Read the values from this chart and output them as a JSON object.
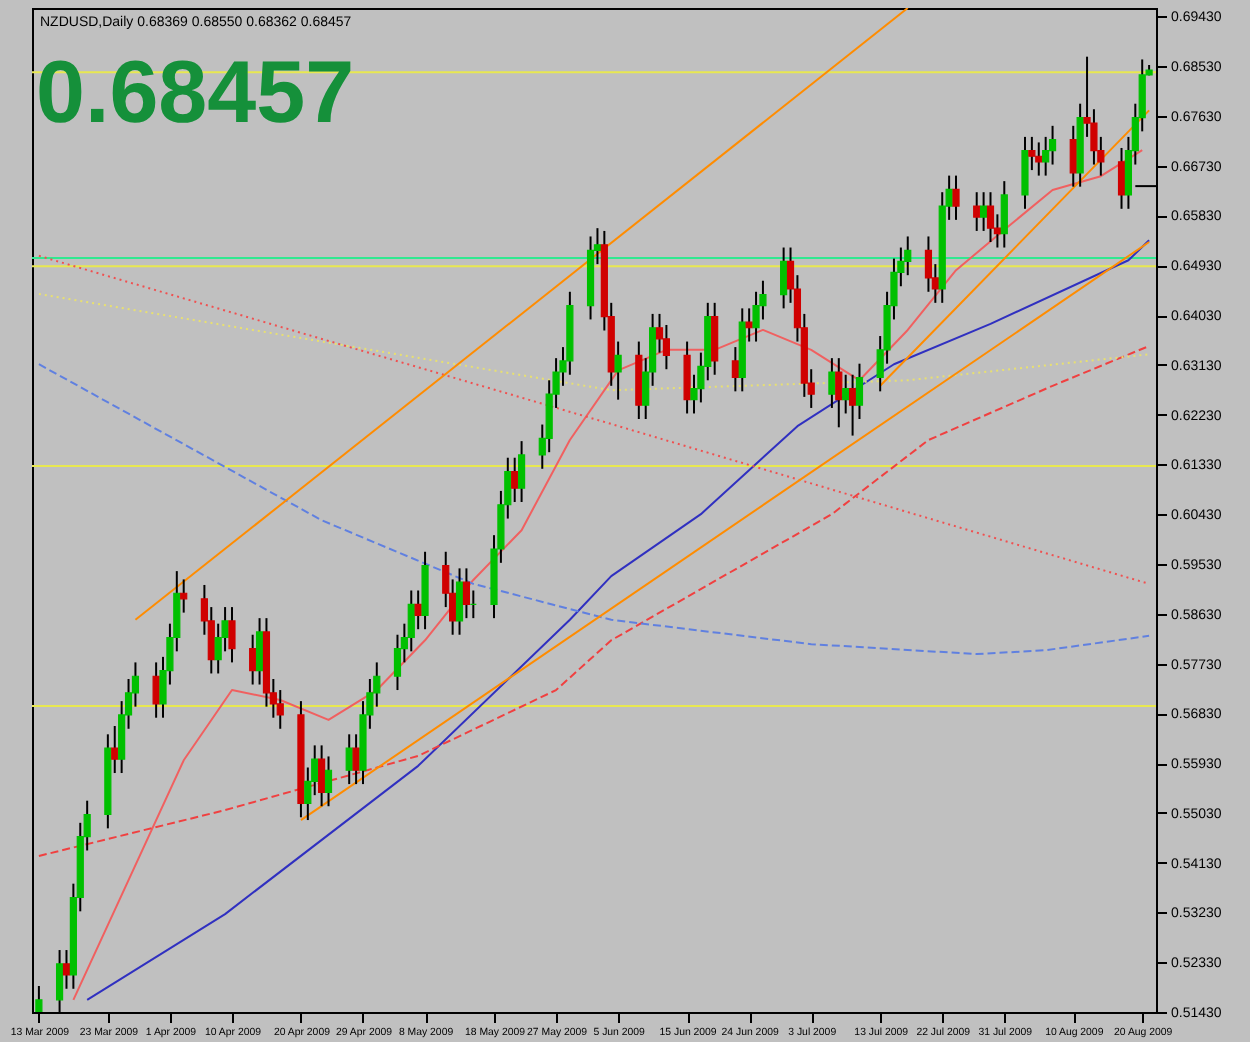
{
  "chart_data": {
    "type": "candlestick",
    "title": "NZDUSD,Daily  0.68369 0.68550 0.68362 0.68457",
    "annotations": [
      "0.68457"
    ],
    "x": [
      "2009-03-13",
      "2009-03-16",
      "2009-03-17",
      "2009-03-18",
      "2009-03-19",
      "2009-03-20",
      "2009-03-23",
      "2009-03-24",
      "2009-03-25",
      "2009-03-26",
      "2009-03-27",
      "2009-03-30",
      "2009-03-31",
      "2009-04-01",
      "2009-04-02",
      "2009-04-03",
      "2009-04-06",
      "2009-04-07",
      "2009-04-08",
      "2009-04-09",
      "2009-04-10",
      "2009-04-13",
      "2009-04-14",
      "2009-04-15",
      "2009-04-16",
      "2009-04-17",
      "2009-04-20",
      "2009-04-21",
      "2009-04-22",
      "2009-04-23",
      "2009-04-24",
      "2009-04-27",
      "2009-04-28",
      "2009-04-29",
      "2009-04-30",
      "2009-05-01",
      "2009-05-04",
      "2009-05-05",
      "2009-05-06",
      "2009-05-07",
      "2009-05-08",
      "2009-05-11",
      "2009-05-12",
      "2009-05-13",
      "2009-05-14",
      "2009-05-15",
      "2009-05-18",
      "2009-05-19",
      "2009-05-20",
      "2009-05-21",
      "2009-05-22",
      "2009-05-25",
      "2009-05-26",
      "2009-05-27",
      "2009-05-28",
      "2009-05-29",
      "2009-06-01",
      "2009-06-02",
      "2009-06-03",
      "2009-06-04",
      "2009-06-05",
      "2009-06-08",
      "2009-06-09",
      "2009-06-10",
      "2009-06-11",
      "2009-06-12",
      "2009-06-15",
      "2009-06-16",
      "2009-06-17",
      "2009-06-18",
      "2009-06-19",
      "2009-06-22",
      "2009-06-23",
      "2009-06-24",
      "2009-06-25",
      "2009-06-26",
      "2009-06-29",
      "2009-06-30",
      "2009-07-01",
      "2009-07-02",
      "2009-07-03",
      "2009-07-06",
      "2009-07-07",
      "2009-07-08",
      "2009-07-09",
      "2009-07-10",
      "2009-07-13",
      "2009-07-14",
      "2009-07-15",
      "2009-07-16",
      "2009-07-17",
      "2009-07-20",
      "2009-07-21",
      "2009-07-22",
      "2009-07-23",
      "2009-07-24",
      "2009-07-27",
      "2009-07-28",
      "2009-07-29",
      "2009-07-30",
      "2009-07-31",
      "2009-08-03",
      "2009-08-04",
      "2009-08-05",
      "2009-08-06",
      "2009-08-07",
      "2009-08-10",
      "2009-08-11",
      "2009-08-12",
      "2009-08-13",
      "2009-08-14",
      "2009-08-17",
      "2009-08-18",
      "2009-08-19",
      "2009-08-20",
      "2009-08-21"
    ],
    "ohlc": [
      [
        0.514,
        0.519,
        0.5125,
        0.5165
      ],
      [
        0.5165,
        0.5255,
        0.514,
        0.523
      ],
      [
        0.523,
        0.5255,
        0.5185,
        0.521
      ],
      [
        0.521,
        0.5375,
        0.5185,
        0.535
      ],
      [
        0.535,
        0.5485,
        0.5325,
        0.546
      ],
      [
        0.546,
        0.5525,
        0.5435,
        0.55
      ],
      [
        0.55,
        0.5645,
        0.5475,
        0.562
      ],
      [
        0.562,
        0.566,
        0.5575,
        0.56
      ],
      [
        0.56,
        0.5705,
        0.5575,
        0.568
      ],
      [
        0.568,
        0.5745,
        0.5655,
        0.572
      ],
      [
        0.572,
        0.5775,
        0.5695,
        0.575
      ],
      [
        0.575,
        0.5775,
        0.5675,
        0.57
      ],
      [
        0.57,
        0.5785,
        0.5675,
        0.576
      ],
      [
        0.576,
        0.5845,
        0.5735,
        0.582
      ],
      [
        0.582,
        0.594,
        0.5795,
        0.59
      ],
      [
        0.59,
        0.5925,
        0.5865,
        0.589
      ],
      [
        0.589,
        0.5915,
        0.5825,
        0.585
      ],
      [
        0.585,
        0.5875,
        0.5755,
        0.578
      ],
      [
        0.578,
        0.5845,
        0.5755,
        0.582
      ],
      [
        0.582,
        0.5875,
        0.5795,
        0.585
      ],
      [
        0.585,
        0.5875,
        0.5775,
        0.58
      ],
      [
        0.58,
        0.5825,
        0.5735,
        0.576
      ],
      [
        0.576,
        0.5855,
        0.5735,
        0.583
      ],
      [
        0.583,
        0.5855,
        0.5695,
        0.572
      ],
      [
        0.572,
        0.5745,
        0.5675,
        0.57
      ],
      [
        0.57,
        0.5725,
        0.5655,
        0.568
      ],
      [
        0.568,
        0.5705,
        0.5495,
        0.552
      ],
      [
        0.552,
        0.5585,
        0.549,
        0.556
      ],
      [
        0.556,
        0.5625,
        0.5535,
        0.56
      ],
      [
        0.56,
        0.5625,
        0.5515,
        0.554
      ],
      [
        0.554,
        0.5605,
        0.5515,
        0.558
      ],
      [
        0.558,
        0.5645,
        0.5555,
        0.562
      ],
      [
        0.562,
        0.5645,
        0.5555,
        0.558
      ],
      [
        0.558,
        0.5705,
        0.5555,
        0.568
      ],
      [
        0.568,
        0.5745,
        0.5655,
        0.572
      ],
      [
        0.572,
        0.5775,
        0.5695,
        0.575
      ],
      [
        0.575,
        0.5825,
        0.5725,
        0.58
      ],
      [
        0.58,
        0.5845,
        0.5775,
        0.582
      ],
      [
        0.582,
        0.5905,
        0.5795,
        0.588
      ],
      [
        0.588,
        0.5905,
        0.5835,
        0.586
      ],
      [
        0.586,
        0.5975,
        0.5835,
        0.595
      ],
      [
        0.595,
        0.5975,
        0.5875,
        0.59
      ],
      [
        0.59,
        0.5925,
        0.5825,
        0.585
      ],
      [
        0.585,
        0.5945,
        0.5825,
        0.592
      ],
      [
        0.592,
        0.5945,
        0.5855,
        0.588
      ],
      [
        0.588,
        0.5905,
        0.5855,
        0.588
      ],
      [
        0.588,
        0.6005,
        0.5855,
        0.598
      ],
      [
        0.598,
        0.6085,
        0.5955,
        0.606
      ],
      [
        0.606,
        0.6145,
        0.6035,
        0.612
      ],
      [
        0.612,
        0.6145,
        0.6065,
        0.609
      ],
      [
        0.609,
        0.6175,
        0.6065,
        0.615
      ],
      [
        0.615,
        0.6205,
        0.6125,
        0.618
      ],
      [
        0.618,
        0.6285,
        0.6155,
        0.626
      ],
      [
        0.626,
        0.6325,
        0.6235,
        0.63
      ],
      [
        0.63,
        0.6345,
        0.6275,
        0.632
      ],
      [
        0.632,
        0.6445,
        0.6295,
        0.642
      ],
      [
        0.642,
        0.6545,
        0.6395,
        0.652
      ],
      [
        0.652,
        0.656,
        0.6495,
        0.653
      ],
      [
        0.653,
        0.6555,
        0.6375,
        0.64
      ],
      [
        0.64,
        0.6425,
        0.6275,
        0.63
      ],
      [
        0.63,
        0.6355,
        0.625,
        0.633
      ],
      [
        0.633,
        0.6355,
        0.6215,
        0.624
      ],
      [
        0.624,
        0.6325,
        0.6215,
        0.63
      ],
      [
        0.63,
        0.6405,
        0.6275,
        0.638
      ],
      [
        0.638,
        0.6405,
        0.6335,
        0.636
      ],
      [
        0.636,
        0.6385,
        0.6305,
        0.633
      ],
      [
        0.633,
        0.6355,
        0.6225,
        0.625
      ],
      [
        0.625,
        0.6295,
        0.6225,
        0.627
      ],
      [
        0.627,
        0.6335,
        0.6245,
        0.631
      ],
      [
        0.631,
        0.6425,
        0.6285,
        0.64
      ],
      [
        0.64,
        0.6425,
        0.6295,
        0.632
      ],
      [
        0.632,
        0.6345,
        0.6265,
        0.629
      ],
      [
        0.629,
        0.6415,
        0.6265,
        0.639
      ],
      [
        0.639,
        0.6415,
        0.6355,
        0.638
      ],
      [
        0.638,
        0.6445,
        0.6355,
        0.642
      ],
      [
        0.642,
        0.6465,
        0.6395,
        0.644
      ],
      [
        0.644,
        0.6525,
        0.6415,
        0.65
      ],
      [
        0.65,
        0.6525,
        0.6425,
        0.645
      ],
      [
        0.645,
        0.6475,
        0.6355,
        0.638
      ],
      [
        0.638,
        0.6405,
        0.6255,
        0.628
      ],
      [
        0.628,
        0.6305,
        0.6235,
        0.626
      ],
      [
        0.626,
        0.6325,
        0.6235,
        0.63
      ],
      [
        0.63,
        0.6325,
        0.62,
        0.625
      ],
      [
        0.625,
        0.6295,
        0.6225,
        0.627
      ],
      [
        0.627,
        0.6295,
        0.6185,
        0.624
      ],
      [
        0.624,
        0.6315,
        0.6215,
        0.629
      ],
      [
        0.629,
        0.6365,
        0.6265,
        0.634
      ],
      [
        0.634,
        0.6445,
        0.6315,
        0.642
      ],
      [
        0.642,
        0.6505,
        0.6395,
        0.648
      ],
      [
        0.648,
        0.6525,
        0.6455,
        0.65
      ],
      [
        0.65,
        0.6545,
        0.6475,
        0.652
      ],
      [
        0.652,
        0.6545,
        0.6445,
        0.647
      ],
      [
        0.647,
        0.6495,
        0.6425,
        0.645
      ],
      [
        0.645,
        0.6625,
        0.6425,
        0.66
      ],
      [
        0.66,
        0.6655,
        0.6575,
        0.663
      ],
      [
        0.663,
        0.6655,
        0.6575,
        0.66
      ],
      [
        0.66,
        0.6625,
        0.6555,
        0.658
      ],
      [
        0.658,
        0.6625,
        0.6555,
        0.66
      ],
      [
        0.66,
        0.6625,
        0.6535,
        0.656
      ],
      [
        0.656,
        0.6585,
        0.6525,
        0.655
      ],
      [
        0.655,
        0.6645,
        0.6525,
        0.662
      ],
      [
        0.662,
        0.6725,
        0.6595,
        0.67
      ],
      [
        0.67,
        0.6725,
        0.6665,
        0.669
      ],
      [
        0.669,
        0.6715,
        0.6655,
        0.668
      ],
      [
        0.668,
        0.6725,
        0.6655,
        0.67
      ],
      [
        0.67,
        0.6745,
        0.6675,
        0.672
      ],
      [
        0.672,
        0.6745,
        0.6635,
        0.666
      ],
      [
        0.666,
        0.6785,
        0.6635,
        0.676
      ],
      [
        0.676,
        0.687,
        0.6725,
        0.675
      ],
      [
        0.675,
        0.6775,
        0.6675,
        0.67
      ],
      [
        0.67,
        0.6725,
        0.6655,
        0.668
      ],
      [
        0.668,
        0.6705,
        0.6595,
        0.662
      ],
      [
        0.662,
        0.6725,
        0.6595,
        0.67
      ],
      [
        0.67,
        0.6785,
        0.6675,
        0.676
      ],
      [
        0.676,
        0.6865,
        0.6735,
        0.6837
      ],
      [
        0.68369,
        0.6855,
        0.68362,
        0.68457
      ]
    ],
    "colors": [
      "#00c000",
      "#00c000",
      "#d00000",
      "#00c000",
      "#00c000",
      "#00c000",
      "#00c000",
      "#d00000",
      "#00c000",
      "#00c000",
      "#00c000",
      "#d00000",
      "#00c000",
      "#00c000",
      "#00c000",
      "#d00000",
      "#d00000",
      "#d00000",
      "#00c000",
      "#00c000",
      "#d00000",
      "#d00000",
      "#00c000",
      "#d00000",
      "#d00000",
      "#d00000",
      "#d00000",
      "#00c000",
      "#00c000",
      "#d00000",
      "#00c000",
      "#00c000",
      "#d00000",
      "#00c000",
      "#00c000",
      "#00c000",
      "#00c000",
      "#00c000",
      "#00c000",
      "#d00000",
      "#00c000",
      "#d00000",
      "#d00000",
      "#00c000",
      "#d00000",
      "#00c000",
      "#00c000",
      "#00c000",
      "#00c000",
      "#d00000",
      "#00c000",
      "#00c000",
      "#00c000",
      "#00c000",
      "#00c000",
      "#00c000",
      "#00c000",
      "#00c000",
      "#d00000",
      "#d00000",
      "#00c000",
      "#d00000",
      "#00c000",
      "#00c000",
      "#d00000",
      "#d00000",
      "#d00000",
      "#00c000",
      "#00c000",
      "#00c000",
      "#d00000",
      "#d00000",
      "#00c000",
      "#d00000",
      "#00c000",
      "#00c000",
      "#00c000",
      "#d00000",
      "#d00000",
      "#d00000",
      "#d00000",
      "#00c000",
      "#d00000",
      "#00c000",
      "#d00000",
      "#00c000",
      "#00c000",
      "#00c000",
      "#00c000",
      "#00c000",
      "#00c000",
      "#d00000",
      "#d00000",
      "#00c000",
      "#00c000",
      "#d00000",
      "#d00000",
      "#00c000",
      "#d00000",
      "#d00000",
      "#00c000",
      "#00c000",
      "#d00000",
      "#d00000",
      "#00c000",
      "#00c000",
      "#d00000",
      "#00c000",
      "#d00000",
      "#d00000",
      "#d00000",
      "#d00000",
      "#00c000",
      "#00c000",
      "#00c000",
      "#00c000"
    ],
    "series": [
      {
        "type": "line",
        "color": "#f06060",
        "line_style": "solid",
        "x": [
          "2009-03-18",
          "2009-04-03",
          "2009-04-10",
          "2009-04-17",
          "2009-04-24",
          "2009-05-01",
          "2009-05-08",
          "2009-05-15",
          "2009-05-22",
          "2009-05-29",
          "2009-06-05",
          "2009-06-12",
          "2009-06-19",
          "2009-06-26",
          "2009-07-03",
          "2009-07-10",
          "2009-07-17",
          "2009-07-24",
          "2009-07-31",
          "2009-08-07",
          "2009-08-14",
          "2009-08-20"
        ],
        "values": [
          0.5165,
          0.5598,
          0.5725,
          0.5707,
          0.5671,
          0.5725,
          0.5815,
          0.5924,
          0.6014,
          0.6177,
          0.6303,
          0.634,
          0.634,
          0.6376,
          0.634,
          0.6285,
          0.6376,
          0.6484,
          0.6557,
          0.6629,
          0.6654,
          0.6701
        ]
      },
      {
        "type": "line",
        "color": "#3030c0",
        "line_style": "solid",
        "x": [
          "2009-03-20",
          "2009-04-09",
          "2009-05-07",
          "2009-05-29",
          "2009-06-04",
          "2009-06-17",
          "2009-07-01",
          "2009-07-15",
          "2009-07-29",
          "2009-08-18",
          "2009-08-21"
        ],
        "values": [
          0.5165,
          0.532,
          0.5588,
          0.5852,
          0.5931,
          0.6043,
          0.6202,
          0.6314,
          0.6387,
          0.6502,
          0.6538
        ]
      },
      {
        "type": "line",
        "color": "#f04040",
        "line_style": "dashed",
        "x": [
          "2009-03-13",
          "2009-04-09",
          "2009-05-07",
          "2009-05-27",
          "2009-06-04",
          "2009-07-06",
          "2009-07-20",
          "2009-08-07",
          "2009-08-21"
        ],
        "values": [
          0.5425,
          0.5508,
          0.5606,
          0.5725,
          0.5815,
          0.6043,
          0.6177,
          0.6275,
          0.6347
        ]
      },
      {
        "type": "line",
        "color": "#6080e0",
        "line_style": "dashed",
        "x": [
          "2009-03-13",
          "2009-04-23",
          "2009-05-15",
          "2009-06-04",
          "2009-07-03",
          "2009-07-27",
          "2009-08-06",
          "2009-08-21"
        ],
        "values": [
          0.6314,
          0.6032,
          0.5917,
          0.5852,
          0.5808,
          0.579,
          0.5797,
          0.5823
        ]
      },
      {
        "type": "line",
        "color": "#f05050",
        "line_style": "dotted",
        "x": [
          "2009-03-13",
          "2009-06-04",
          "2009-08-21"
        ],
        "values": [
          0.651,
          0.6206,
          0.5917
        ]
      },
      {
        "type": "line",
        "color": "#e8e070",
        "line_style": "dotted",
        "x": [
          "2009-03-13",
          "2009-06-04",
          "2009-07-17",
          "2009-08-21"
        ],
        "values": [
          0.6441,
          0.6267,
          0.6285,
          0.6332
        ]
      },
      {
        "type": "line",
        "color": "#ff8c00",
        "line_style": "solid",
        "x": [
          "2009-03-27",
          "2009-07-17"
        ],
        "values": [
          0.5852,
          0.6958
        ]
      },
      {
        "type": "line",
        "color": "#ff8c00",
        "line_style": "solid",
        "x": [
          "2009-04-20",
          "2009-08-21"
        ],
        "values": [
          0.549,
          0.6535
        ]
      },
      {
        "type": "line",
        "color": "#ff8c00",
        "line_style": "solid",
        "x": [
          "2009-07-13",
          "2009-08-21"
        ],
        "values": [
          0.6275,
          0.6773
        ]
      },
      {
        "type": "line",
        "color": "#000000",
        "line_style": "solid",
        "x": [
          "2009-08-19",
          "2009-08-22"
        ],
        "values": [
          0.6636,
          0.6636
        ]
      }
    ],
    "ref_lines": [
      {
        "axis": "y",
        "value": 0.6842,
        "color": "#e8e850"
      },
      {
        "axis": "y",
        "value": 0.6506,
        "color": "#30e890"
      },
      {
        "axis": "y",
        "value": 0.6491,
        "color": "#e8e850"
      },
      {
        "axis": "y",
        "value": 0.613,
        "color": "#e8e850"
      },
      {
        "axis": "y",
        "value": 0.5696,
        "color": "#e8e850"
      }
    ],
    "xlim": [
      "2009-03-12",
      "2009-08-22"
    ],
    "xticks": [
      {
        "value": "2009-03-13",
        "label": "13 Mar 2009"
      },
      {
        "value": "2009-03-23",
        "label": "23 Mar 2009"
      },
      {
        "value": "2009-04-01",
        "label": "1 Apr 2009"
      },
      {
        "value": "2009-04-10",
        "label": "10 Apr 2009"
      },
      {
        "value": "2009-04-20",
        "label": "20 Apr 2009"
      },
      {
        "value": "2009-04-29",
        "label": "29 Apr 2009"
      },
      {
        "value": "2009-05-08",
        "label": "8 May 2009"
      },
      {
        "value": "2009-05-18",
        "label": "18 May 2009"
      },
      {
        "value": "2009-05-27",
        "label": "27 May 2009"
      },
      {
        "value": "2009-06-05",
        "label": "5 Jun 2009"
      },
      {
        "value": "2009-06-15",
        "label": "15 Jun 2009"
      },
      {
        "value": "2009-06-24",
        "label": "24 Jun 2009"
      },
      {
        "value": "2009-07-03",
        "label": "3 Jul 2009"
      },
      {
        "value": "2009-07-13",
        "label": "13 Jul 2009"
      },
      {
        "value": "2009-07-22",
        "label": "22 Jul 2009"
      },
      {
        "value": "2009-07-31",
        "label": "31 Jul 2009"
      },
      {
        "value": "2009-08-10",
        "label": "10 Aug 2009"
      },
      {
        "value": "2009-08-20",
        "label": "20 Aug 2009"
      }
    ],
    "ylim": [
      0.5143,
      0.6958
    ],
    "yticks": [
      {
        "value": 0.5143,
        "label": "0.51430"
      },
      {
        "value": 0.5233,
        "label": "0.52330"
      },
      {
        "value": 0.5323,
        "label": "0.53230"
      },
      {
        "value": 0.5413,
        "label": "0.54130"
      },
      {
        "value": 0.5503,
        "label": "0.55030"
      },
      {
        "value": 0.5593,
        "label": "0.55930"
      },
      {
        "value": 0.5683,
        "label": "0.56830"
      },
      {
        "value": 0.5773,
        "label": "0.57730"
      },
      {
        "value": 0.5863,
        "label": "0.58630"
      },
      {
        "value": 0.5953,
        "label": "0.59530"
      },
      {
        "value": 0.6043,
        "label": "0.60430"
      },
      {
        "value": 0.6133,
        "label": "0.61330"
      },
      {
        "value": 0.6223,
        "label": "0.62230"
      },
      {
        "value": 0.6313,
        "label": "0.63130"
      },
      {
        "value": 0.6403,
        "label": "0.64030"
      },
      {
        "value": 0.6493,
        "label": "0.64930"
      },
      {
        "value": 0.6583,
        "label": "0.65830"
      },
      {
        "value": 0.6673,
        "label": "0.66730"
      },
      {
        "value": 0.6763,
        "label": "0.67630"
      },
      {
        "value": 0.6853,
        "label": "0.68530"
      },
      {
        "value": 0.6943,
        "label": "0.69430"
      }
    ],
    "grid": false
  }
}
